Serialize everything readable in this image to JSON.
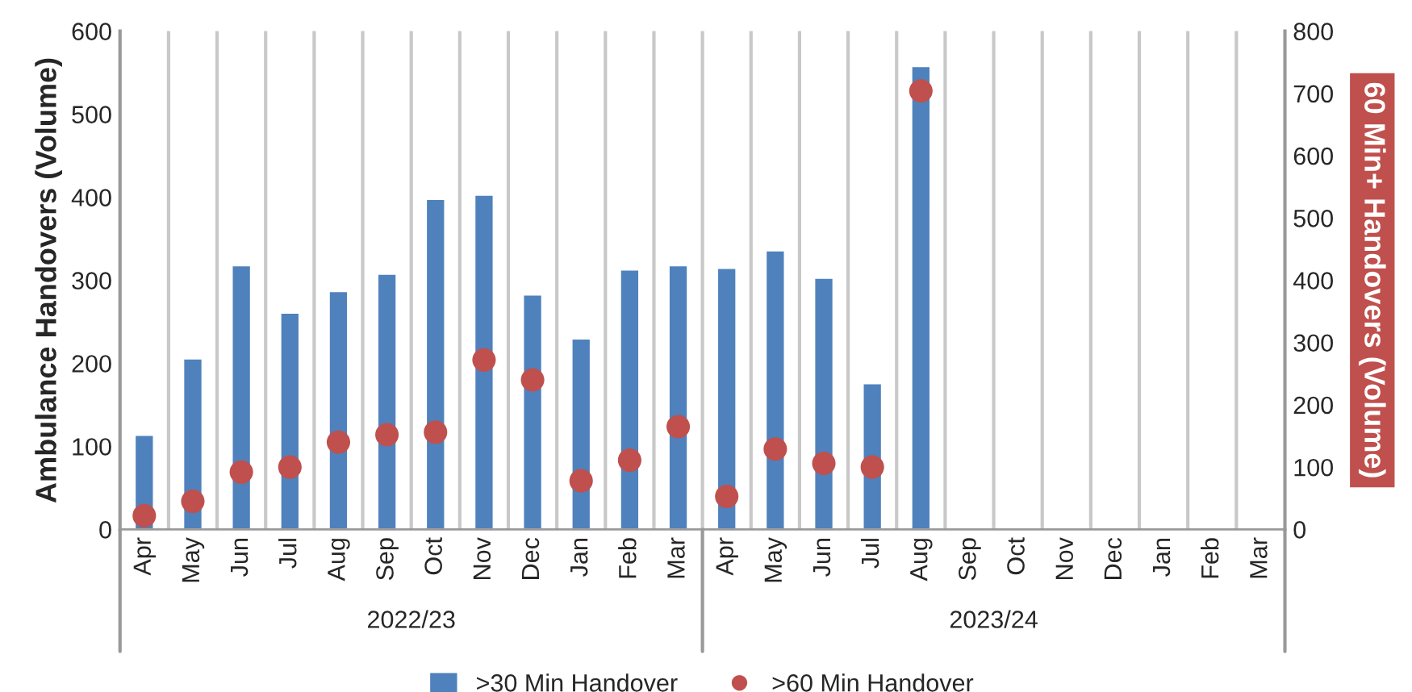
{
  "chart_data": {
    "type": "bar",
    "categories": [
      "Apr",
      "May",
      "Jun",
      "Jul",
      "Aug",
      "Sep",
      "Oct",
      "Nov",
      "Dec",
      "Jan",
      "Feb",
      "Mar",
      "Apr",
      "May",
      "Jun",
      "Jul",
      "Aug",
      "Sep",
      "Oct",
      "Nov",
      "Dec",
      "Jan",
      "Feb",
      "Mar"
    ],
    "series": [
      {
        "name": ">30 Min Handover",
        "color": "#4f81bd",
        "values": [
          114,
          206,
          318,
          261,
          287,
          308,
          398,
          403,
          283,
          230,
          313,
          318,
          315,
          336,
          303,
          176,
          558,
          null,
          null,
          null,
          null,
          null,
          null,
          null
        ]
      },
      {
        "name": ">60 Min Handover",
        "type": "scatter",
        "axis": "y2",
        "color": "#c0504d",
        "values": [
          22,
          45,
          92,
          100,
          140,
          152,
          156,
          272,
          240,
          78,
          111,
          165,
          53,
          129,
          106,
          100,
          704,
          null,
          null,
          null,
          null,
          null,
          null,
          null
        ]
      }
    ],
    "ylabel": "Ambulance Handovers (Volume)",
    "y2label": "60 Min+ Handovers (Volume)",
    "ylim": [
      0,
      600
    ],
    "yticks": [
      0,
      100,
      200,
      300,
      400,
      500,
      600
    ],
    "y2lim": [
      0,
      800
    ],
    "y2ticks": [
      0,
      100,
      200,
      300,
      400,
      500,
      600,
      700,
      800
    ],
    "annotations": [
      "2022/23",
      "2023/24"
    ],
    "grid": "x",
    "legend": "bottom",
    "marker": "circle"
  }
}
